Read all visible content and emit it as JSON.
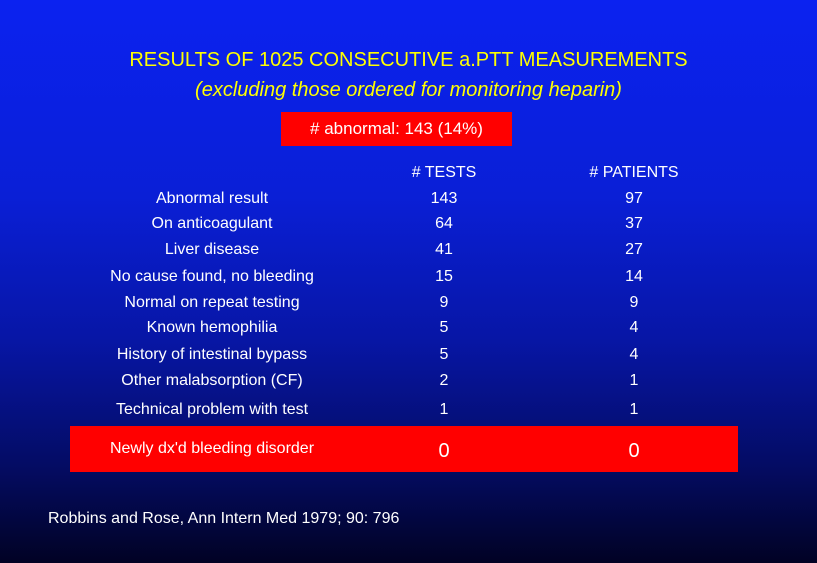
{
  "slide": {
    "title": "RESULTS OF 1025 CONSECUTIVE a.PTT MEASUREMENTS",
    "subtitle": "(excluding those ordered for monitoring heparin)",
    "abnormal_summary": "# abnormal: 143 (14%)",
    "citation": "Robbins and Rose, Ann Intern Med 1979; 90: 796"
  },
  "table": {
    "headers": {
      "tests": "# TESTS",
      "patients": "# PATIENTS"
    },
    "rows": [
      {
        "label": "Abnormal result",
        "tests": "143",
        "patients": "97"
      },
      {
        "label": "On anticoagulant",
        "tests": "64",
        "patients": "37"
      },
      {
        "label": "Liver disease",
        "tests": "41",
        "patients": "27"
      },
      {
        "label": "No cause found, no bleeding",
        "tests": "15",
        "patients": "14"
      },
      {
        "label": "Normal on repeat testing",
        "tests": "9",
        "patients": "9"
      },
      {
        "label": "Known hemophilia",
        "tests": "5",
        "patients": "4"
      },
      {
        "label": "History of intestinal bypass",
        "tests": "5",
        "patients": "4"
      },
      {
        "label": "Other malabsorption (CF)",
        "tests": "2",
        "patients": "1"
      },
      {
        "label": "Technical problem with test",
        "tests": "1",
        "patients": "1"
      },
      {
        "label": "Newly dx'd bleeding disorder",
        "tests": "0",
        "patients": "0"
      }
    ]
  },
  "colors": {
    "title": "#ffff00",
    "highlight": "#ff0000",
    "background_top": "#0b22f0",
    "background_bottom": "#010224",
    "text": "#ffffff"
  }
}
